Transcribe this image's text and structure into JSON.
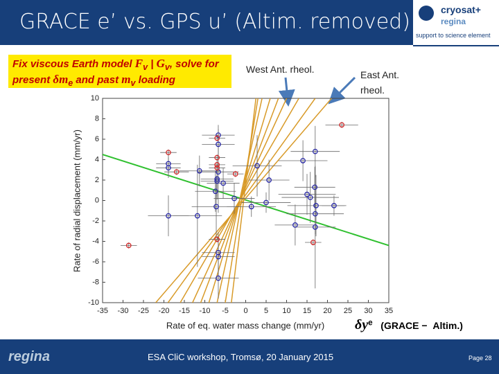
{
  "slide": {
    "title": "GRACE e’ vs. GPS u’ (Altim. removed)",
    "logo": {
      "brand": "cryosat+",
      "sub": "regina",
      "tagline": "support to science element"
    },
    "box": {
      "l1a": "Fix viscous Earth model",
      "F": "F",
      "Fs": "v",
      "bar": "|",
      "G": "G",
      "Gs": "v",
      "l1b": ", solve for",
      "l2a": "present",
      "dm": "δm",
      "dms": "e",
      "l2b": "and past",
      "m": "m",
      "ms": "v",
      "l2c": "loading"
    },
    "formula": {
      "dy": "δy",
      "dys": "e",
      "a": "(GRACE",
      "minus": "−",
      "b": "Altim.)"
    },
    "footer": {
      "brand": "regina",
      "event": "ESA CliC workshop, Tromsø, 20 January 2015",
      "page": "Page 28"
    }
  },
  "chart_data": {
    "type": "scatter",
    "annotations": [
      "West Ant. rheol.",
      "East Ant. rheol."
    ],
    "xlabel": "Rate of eq. water mass change (mm/yr)",
    "ylabel": "Rate of radial displacement (mm/yr)",
    "xlim": [
      -35,
      35
    ],
    "xticks": [
      -35,
      -30,
      -25,
      -20,
      -15,
      -10,
      -5,
      0,
      5,
      10,
      15,
      20,
      25,
      30,
      35
    ],
    "ylim": [
      -10,
      10
    ],
    "yticks": [
      -10,
      -8,
      -6,
      -4,
      -2,
      0,
      2,
      4,
      6,
      8,
      10
    ],
    "series": [
      {
        "color": "#2a2aa8",
        "x": [
          -6.7,
          -6.7,
          -18.9,
          -18.9,
          -11.3,
          -7.0,
          -7.0,
          -7.4,
          -5.5,
          -6.7,
          -2.8,
          2.8,
          5.7,
          1.4,
          5.0,
          14.0,
          17.0,
          15.0,
          15.8,
          16.9,
          17.2,
          17.0,
          17.0,
          12.1,
          21.6,
          -18.9,
          -11.8,
          -7.2,
          -6.7,
          -6.7,
          -6.7
        ],
        "values": [
          6.4,
          5.5,
          3.6,
          3.2,
          2.9,
          2.1,
          1.9,
          0.9,
          1.7,
          2.8,
          0.2,
          3.4,
          2.0,
          -0.6,
          -0.2,
          3.9,
          4.8,
          0.6,
          0.3,
          1.3,
          -0.5,
          -1.3,
          -2.6,
          -2.4,
          -0.5,
          -1.5,
          -1.5,
          -0.6,
          -5.1,
          -5.5,
          -7.6
        ],
        "xerr": [
          4,
          4,
          3,
          3,
          5,
          4,
          4,
          5,
          4,
          5,
          5,
          6,
          5,
          6,
          6,
          6,
          6,
          7,
          7,
          5,
          7,
          7,
          5,
          5,
          3,
          5,
          6,
          6,
          4,
          4,
          5
        ],
        "yerr": [
          1,
          1.5,
          1,
          1,
          1.5,
          2,
          1.5,
          2,
          1.5,
          4,
          1.5,
          3,
          2,
          1,
          1,
          2,
          2.5,
          2,
          2.5,
          2,
          3,
          2,
          6,
          2,
          1,
          2,
          5,
          3,
          2,
          2,
          2
        ]
      },
      {
        "color": "#d42a2a",
        "x": [
          23.5,
          -18.9,
          -28.6,
          -16.9,
          -7.0,
          -7.0,
          -7.0,
          -2.5,
          -7.0,
          16.5,
          -7.0
        ],
        "values": [
          7.4,
          4.7,
          -4.4,
          2.8,
          4.2,
          3.5,
          3.2,
          2.6,
          -3.8,
          -4.1,
          6.1
        ],
        "xerr": [
          4,
          2,
          2,
          3,
          2,
          2,
          2,
          2,
          2,
          2,
          2
        ],
        "yerr": [
          0.3,
          0.3,
          0.3,
          0.3,
          0.3,
          0.3,
          0.3,
          0.3,
          0.3,
          0.3,
          0.3
        ]
      }
    ],
    "lines": [
      {
        "color": "#2fc02f",
        "x": [
          -35,
          35
        ],
        "values": [
          4.5,
          -4.4
        ]
      },
      {
        "color": "#d89a28",
        "x": [
          -22,
          21
        ],
        "values": [
          -10,
          10
        ]
      },
      {
        "color": "#d89a28",
        "x": [
          -19,
          17
        ],
        "values": [
          -10,
          10
        ]
      },
      {
        "color": "#d89a28",
        "x": [
          -16,
          13
        ],
        "values": [
          -10,
          10
        ]
      },
      {
        "color": "#d89a28",
        "x": [
          -13,
          10
        ],
        "values": [
          -10,
          10
        ]
      },
      {
        "color": "#d89a28",
        "x": [
          -11,
          8
        ],
        "values": [
          -10,
          10
        ]
      },
      {
        "color": "#d89a28",
        "x": [
          -9,
          6
        ],
        "values": [
          -10,
          10
        ]
      },
      {
        "color": "#d89a28",
        "x": [
          -7,
          4
        ],
        "values": [
          -10,
          10
        ]
      },
      {
        "color": "#d89a28",
        "x": [
          -5,
          3
        ],
        "values": [
          -10,
          10
        ]
      },
      {
        "color": "#d89a28",
        "x": [
          -3.5,
          2.5
        ],
        "values": [
          -10,
          10
        ]
      }
    ]
  }
}
